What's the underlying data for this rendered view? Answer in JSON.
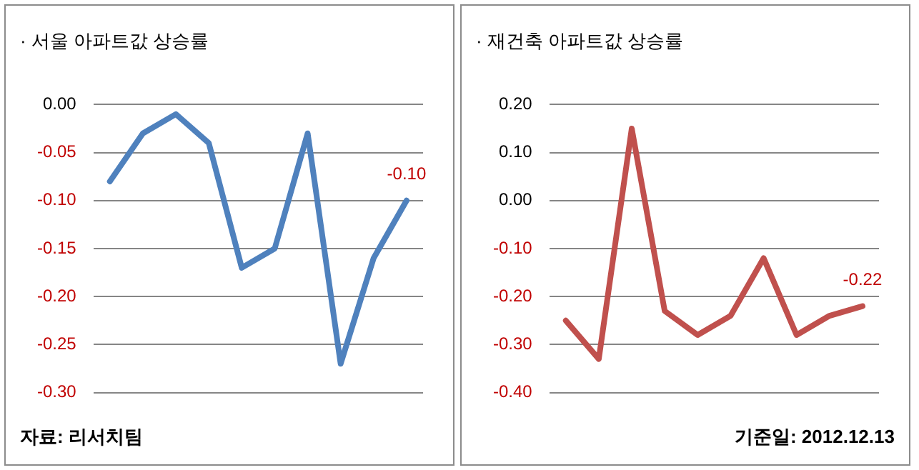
{
  "chart_data": [
    {
      "type": "line",
      "title": "· 서울 아파트값 상승률",
      "categories": [
        null,
        null,
        null,
        null,
        null,
        null,
        null,
        null,
        null,
        null
      ],
      "series": [
        {
          "color": "#4f81bd",
          "values": [
            -0.08,
            -0.03,
            -0.01,
            -0.04,
            -0.17,
            -0.15,
            -0.03,
            -0.27,
            -0.16,
            -0.1
          ],
          "value_labels": [
            null,
            null,
            null,
            null,
            null,
            null,
            null,
            null,
            null,
            "-0.10"
          ]
        }
      ],
      "ylim": [
        -0.3,
        0.0
      ],
      "yticks": [
        {
          "value": -0.3,
          "label": "-0.30"
        },
        {
          "value": -0.25,
          "label": "-0.25"
        },
        {
          "value": -0.2,
          "label": "-0.20"
        },
        {
          "value": -0.15,
          "label": "-0.15"
        },
        {
          "value": -0.1,
          "label": "-0.10"
        },
        {
          "value": -0.05,
          "label": "-0.05"
        },
        {
          "value": 0,
          "label": "0.00"
        }
      ],
      "grid": "y",
      "legend": false,
      "marker": "none",
      "line_style": "solid",
      "tick_labels": "y",
      "annotations": [
        "자료: 리서치팀"
      ]
    },
    {
      "type": "line",
      "title": "· 재건축 아파트값 상승률",
      "categories": [
        null,
        null,
        null,
        null,
        null,
        null,
        null,
        null,
        null,
        null
      ],
      "series": [
        {
          "color": "#c0504d",
          "values": [
            -0.25,
            -0.33,
            0.15,
            -0.23,
            -0.28,
            -0.24,
            -0.12,
            -0.28,
            -0.24,
            -0.22
          ],
          "value_labels": [
            null,
            null,
            null,
            null,
            null,
            null,
            null,
            null,
            null,
            "-0.22"
          ]
        }
      ],
      "ylim": [
        -0.4,
        0.2
      ],
      "yticks": [
        {
          "value": -0.4,
          "label": "-0.40"
        },
        {
          "value": -0.3,
          "label": "-0.30"
        },
        {
          "value": -0.2,
          "label": "-0.20"
        },
        {
          "value": -0.1,
          "label": "-0.10"
        },
        {
          "value": 0,
          "label": "0.00"
        },
        {
          "value": 0.1,
          "label": "0.10"
        },
        {
          "value": 0.2,
          "label": "0.20"
        }
      ],
      "grid": "y",
      "legend": false,
      "marker": "none",
      "line_style": "solid",
      "tick_labels": "y",
      "annotations": [
        "기준일: 2012.12.13"
      ]
    }
  ]
}
